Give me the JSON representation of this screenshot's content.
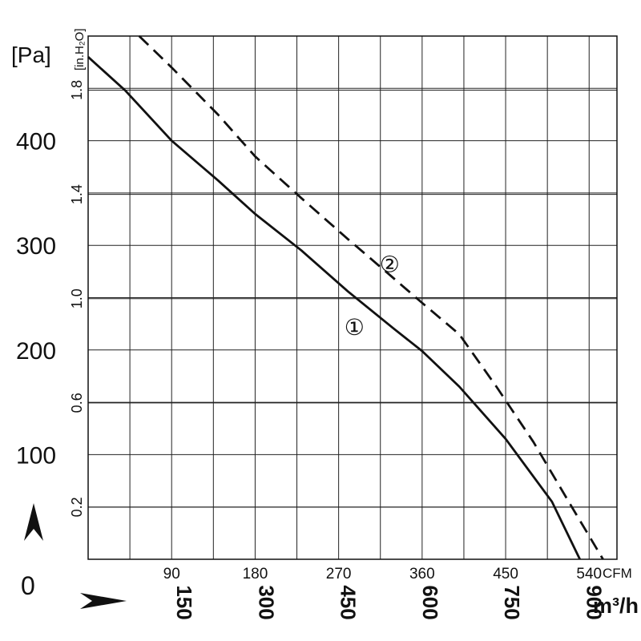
{
  "chart_data": {
    "type": "line",
    "title": "",
    "units": {
      "pressure_primary": "[Pa]",
      "pressure_secondary": "[in.H₂O]",
      "flow_primary": "CFM",
      "flow_secondary": "m³/h"
    },
    "origin_label": "0",
    "xlim": [
      0,
      570
    ],
    "ylim": [
      0,
      500
    ],
    "grid": true,
    "x_ticks_cfm": [
      "90",
      "180",
      "270",
      "360",
      "450",
      "540"
    ],
    "x_ticks_cfm_values": [
      90,
      180,
      270,
      360,
      450,
      540
    ],
    "x_ticks_m3h": [
      "150",
      "300",
      "450",
      "600",
      "750",
      "900"
    ],
    "x_ticks_m3h_values": [
      150,
      300,
      450,
      600,
      750,
      900
    ],
    "y_ticks_pa": [
      "100",
      "200",
      "300",
      "400"
    ],
    "y_ticks_pa_values": [
      100,
      200,
      300,
      400
    ],
    "y_ticks_inh2o": [
      "0.2",
      "0.6",
      "1.0",
      "1.4",
      "1.8"
    ],
    "y_ticks_inh2o_values": [
      0.2,
      0.6,
      1.0,
      1.4,
      1.8
    ],
    "series": [
      {
        "name": "①",
        "style": "solid",
        "color": "#111111",
        "label_position": [
          287,
          222
        ],
        "points": [
          [
            0,
            480
          ],
          [
            40,
            448
          ],
          [
            90,
            400
          ],
          [
            140,
            362
          ],
          [
            180,
            330
          ],
          [
            230,
            295
          ],
          [
            280,
            256
          ],
          [
            330,
            220
          ],
          [
            360,
            199
          ],
          [
            400,
            165
          ],
          [
            450,
            115
          ],
          [
            500,
            55
          ],
          [
            530,
            0
          ]
        ]
      },
      {
        "name": "②",
        "style": "dashed",
        "color": "#111111",
        "label_position": [
          325,
          282
        ],
        "points": [
          [
            55,
            500
          ],
          [
            90,
            470
          ],
          [
            140,
            425
          ],
          [
            180,
            385
          ],
          [
            230,
            345
          ],
          [
            280,
            306
          ],
          [
            330,
            268
          ],
          [
            360,
            245
          ],
          [
            400,
            215
          ],
          [
            440,
            165
          ],
          [
            480,
            112
          ],
          [
            520,
            52
          ],
          [
            555,
            0
          ]
        ]
      }
    ]
  }
}
